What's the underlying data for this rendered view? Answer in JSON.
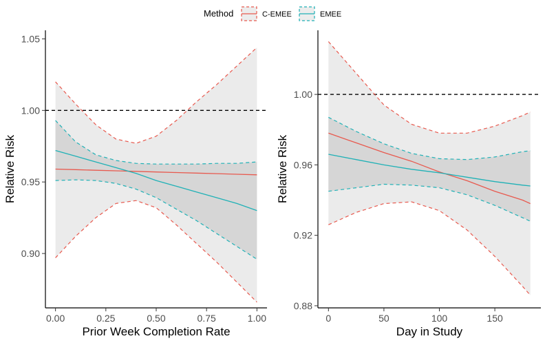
{
  "legend": {
    "title": "Method",
    "entries": [
      {
        "name": "C-EMEE",
        "color": "#e8594e"
      },
      {
        "name": "EMEE",
        "color": "#1fb1b6"
      }
    ]
  },
  "chart_data": [
    {
      "type": "line",
      "xlabel": "Prior Week Completion Rate",
      "ylabel": "Relative Risk",
      "xlim": [
        -0.05,
        1.05
      ],
      "ylim": [
        0.862,
        1.056
      ],
      "xticks": [
        0.0,
        0.25,
        0.5,
        0.75,
        1.0
      ],
      "xtick_labels": [
        "0.00",
        "0.25",
        "0.50",
        "0.75",
        "1.00"
      ],
      "yticks": [
        0.9,
        0.95,
        1.0,
        1.05
      ],
      "ytick_labels": [
        "0.90",
        "0.95",
        "1.00",
        "1.05"
      ],
      "reference_line": 1.0,
      "series": [
        {
          "name": "C-EMEE",
          "color": "#e8594e",
          "x": [
            0.0,
            0.1,
            0.2,
            0.3,
            0.4,
            0.5,
            0.6,
            0.7,
            0.8,
            0.9,
            1.0
          ],
          "estimate": [
            0.959,
            0.9586,
            0.9582,
            0.9578,
            0.9574,
            0.957,
            0.9566,
            0.9562,
            0.9558,
            0.9554,
            0.955
          ],
          "upper": [
            1.02,
            1.0045,
            0.99,
            0.98,
            0.977,
            0.982,
            0.993,
            1.006,
            1.018,
            1.031,
            1.044
          ],
          "lower": [
            0.897,
            0.912,
            0.925,
            0.935,
            0.937,
            0.932,
            0.92,
            0.907,
            0.894,
            0.88,
            0.866
          ]
        },
        {
          "name": "EMEE",
          "color": "#1fb1b6",
          "x": [
            0.0,
            0.1,
            0.2,
            0.3,
            0.4,
            0.5,
            0.6,
            0.7,
            0.8,
            0.9,
            1.0
          ],
          "estimate": [
            0.972,
            0.968,
            0.964,
            0.96,
            0.956,
            0.951,
            0.947,
            0.943,
            0.939,
            0.935,
            0.93
          ],
          "upper": [
            0.993,
            0.978,
            0.969,
            0.965,
            0.963,
            0.9625,
            0.9625,
            0.9625,
            0.963,
            0.963,
            0.964
          ],
          "lower": [
            0.951,
            0.9515,
            0.951,
            0.949,
            0.945,
            0.939,
            0.931,
            0.923,
            0.914,
            0.905,
            0.896
          ]
        }
      ]
    },
    {
      "type": "line",
      "xlabel": "Day in Study",
      "ylabel": "Relative Risk",
      "xlim": [
        -9.5,
        191.5
      ],
      "ylim": [
        0.8788,
        1.0364
      ],
      "xticks": [
        0,
        50,
        100,
        150
      ],
      "xtick_labels": [
        "0",
        "50",
        "100",
        "150"
      ],
      "yticks": [
        0.88,
        0.92,
        0.96,
        1.0
      ],
      "ytick_labels": [
        "0.88",
        "0.92",
        "0.96",
        "1.00"
      ],
      "reference_line": 1.0,
      "series": [
        {
          "name": "C-EMEE",
          "color": "#e8594e",
          "x": [
            0,
            25,
            50,
            75,
            100,
            125,
            150,
            175,
            182
          ],
          "estimate": [
            0.978,
            0.9725,
            0.967,
            0.962,
            0.956,
            0.951,
            0.945,
            0.94,
            0.938
          ],
          "upper": [
            1.03,
            1.012,
            0.994,
            0.983,
            0.978,
            0.978,
            0.982,
            0.988,
            0.99
          ],
          "lower": [
            0.926,
            0.933,
            0.938,
            0.939,
            0.934,
            0.923,
            0.908,
            0.891,
            0.886
          ]
        },
        {
          "name": "EMEE",
          "color": "#1fb1b6",
          "x": [
            0,
            25,
            50,
            75,
            100,
            125,
            150,
            175,
            182
          ],
          "estimate": [
            0.966,
            0.963,
            0.96,
            0.9575,
            0.9555,
            0.953,
            0.9505,
            0.9485,
            0.948
          ],
          "upper": [
            0.987,
            0.979,
            0.972,
            0.9665,
            0.9635,
            0.963,
            0.9645,
            0.9675,
            0.968
          ],
          "lower": [
            0.945,
            0.947,
            0.949,
            0.9485,
            0.947,
            0.943,
            0.937,
            0.93,
            0.928
          ]
        }
      ]
    }
  ]
}
